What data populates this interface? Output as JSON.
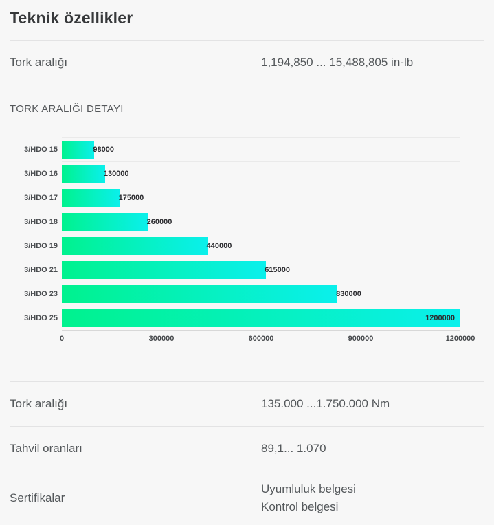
{
  "page": {
    "title": "Teknik özellikler"
  },
  "specs_top": [
    {
      "label": "Tork aralığı",
      "values": [
        "1,194,850 ... 15,488,805 in-lb"
      ]
    }
  ],
  "section": {
    "title": "TORK ARALIĞI DETAYI"
  },
  "chart_data": {
    "type": "bar",
    "orientation": "horizontal",
    "title": "TORK ARALIĞI DETAYI",
    "categories": [
      "3/HDO 15",
      "3/HDO 16",
      "3/HDO 17",
      "3/HDO 18",
      "3/HDO 19",
      "3/HDO 21",
      "3/HDO 23",
      "3/HDO 25"
    ],
    "values": [
      98000,
      130000,
      175000,
      260000,
      440000,
      615000,
      830000,
      1200000
    ],
    "xlim": [
      0,
      1200000
    ],
    "xticks": [
      0,
      300000,
      600000,
      900000,
      1200000
    ],
    "xlabel": "",
    "ylabel": "",
    "grid": "horizontal-row-lines-only",
    "legend": "none",
    "value_labels": "at-bar-end",
    "bar_gradient": [
      "#00f28e",
      "#0af0ec"
    ]
  },
  "specs_bottom": [
    {
      "label": "Tork aralığı",
      "values": [
        "135.000 ...1.750.000 Nm"
      ]
    },
    {
      "label": "Tahvil oranları",
      "values": [
        "89,1... 1.070"
      ]
    },
    {
      "label": "Sertifikalar",
      "values": [
        "Uyumluluk belgesi",
        "Kontrol belgesi"
      ]
    }
  ],
  "colors": {
    "background": "#f7f7f7",
    "bar_gradient_start": "#00f28e",
    "bar_gradient_end": "#0af0ec"
  }
}
